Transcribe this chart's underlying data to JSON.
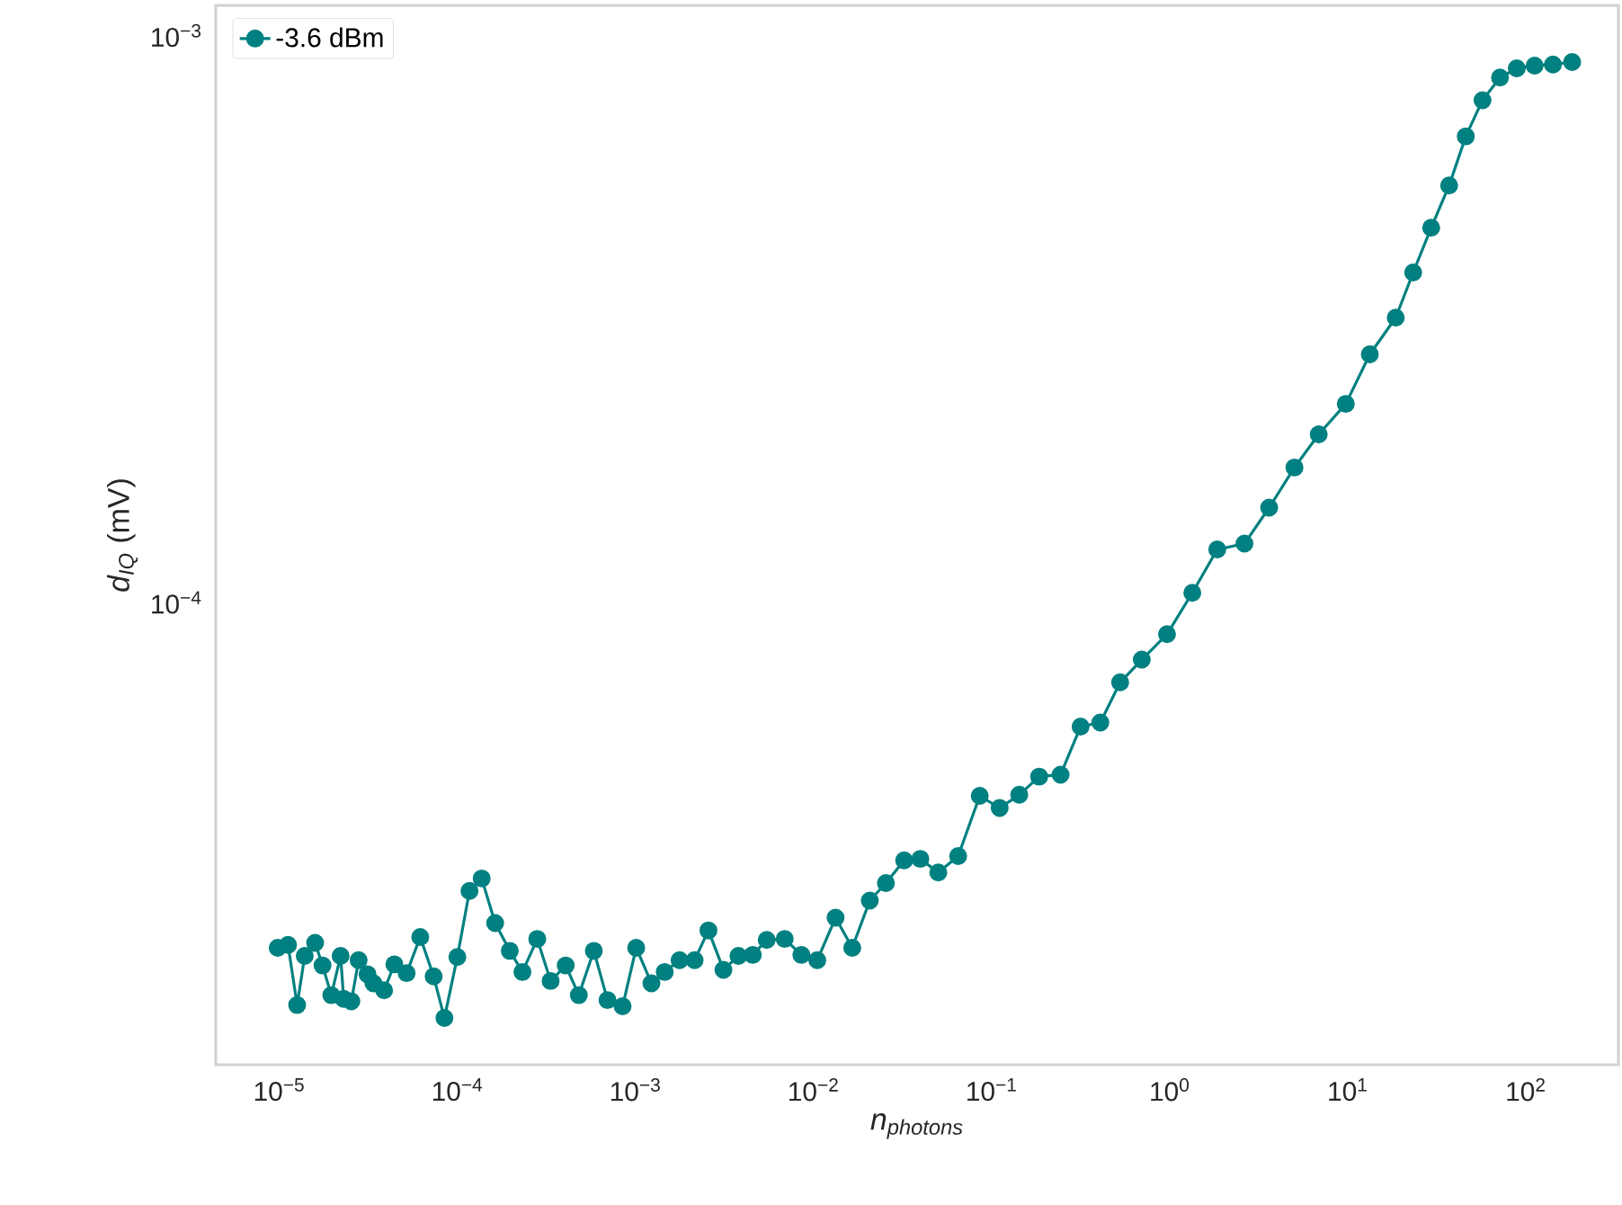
{
  "chart_data": {
    "type": "line",
    "xlabel": "*n$_{photons}$*",
    "ylabel": "*d$_{IQ}$* (mV)",
    "log": "xy",
    "grid": false,
    "legend": "top left",
    "marker": "circle",
    "line_style": "solid",
    "xlim": [
      4.4e-06,
      331
    ],
    "ylim": [
      1.53e-05,
      0.00113
    ],
    "xticks": [
      {
        "value": 1e-05,
        "label": "10$^{−5}$"
      },
      {
        "value": 0.0001,
        "label": "10$^{−4}$"
      },
      {
        "value": 0.001,
        "label": "10$^{−3}$"
      },
      {
        "value": 0.01,
        "label": "10$^{−2}$"
      },
      {
        "value": 0.1,
        "label": "10$^{−1}$"
      },
      {
        "value": 1,
        "label": "10$^{0}$"
      },
      {
        "value": 10,
        "label": "10$^{1}$"
      },
      {
        "value": 100,
        "label": "10$^{2}$"
      }
    ],
    "yticks": [
      {
        "value": 0.0001,
        "label": "10$^{−4}$"
      },
      {
        "value": 0.001,
        "label": "10$^{−3}$"
      }
    ],
    "series": [
      {
        "name": "-3.6 dBm",
        "color": "#008080",
        "x": [
          9.8e-06,
          1.12e-05,
          1.26e-05,
          1.39e-05,
          1.59e-05,
          1.75e-05,
          1.96e-05,
          2.21e-05,
          2.3e-05,
          2.54e-05,
          2.79e-05,
          3.13e-05,
          3.38e-05,
          3.88e-05,
          4.43e-05,
          5.19e-05,
          6.19e-05,
          7.36e-05,
          8.46e-05,
          0.0001,
          0.000117,
          0.000137,
          0.000163,
          0.000197,
          0.000232,
          0.000281,
          0.000334,
          0.000406,
          0.000481,
          0.000584,
          0.000697,
          0.000847,
          0.00101,
          0.00123,
          0.00146,
          0.00177,
          0.00215,
          0.00257,
          0.00312,
          0.00379,
          0.00456,
          0.00546,
          0.00689,
          0.00855,
          0.0105,
          0.0133,
          0.0165,
          0.0207,
          0.0255,
          0.0323,
          0.0398,
          0.0502,
          0.0649,
          0.0858,
          0.111,
          0.143,
          0.185,
          0.244,
          0.316,
          0.408,
          0.527,
          0.697,
          0.966,
          1.34,
          1.85,
          2.63,
          3.62,
          5.02,
          6.87,
          9.75,
          13.3,
          18.6,
          23.3,
          29.4,
          37.1,
          46.0,
          57.1,
          71.6,
          88.9,
          112,
          142,
          182
        ],
        "values": [
          2.46e-05,
          2.49e-05,
          1.95e-05,
          2.38e-05,
          2.51e-05,
          2.29e-05,
          2.03e-05,
          2.38e-05,
          2e-05,
          1.98e-05,
          2.34e-05,
          2.21e-05,
          2.13e-05,
          2.07e-05,
          2.3e-05,
          2.22e-05,
          2.57e-05,
          2.19e-05,
          1.85e-05,
          2.37e-05,
          3.1e-05,
          3.26e-05,
          2.72e-05,
          2.43e-05,
          2.23e-05,
          2.55e-05,
          2.15e-05,
          2.29e-05,
          2.03e-05,
          2.43e-05,
          1.99e-05,
          1.94e-05,
          2.46e-05,
          2.13e-05,
          2.23e-05,
          2.34e-05,
          2.34e-05,
          2.64e-05,
          2.25e-05,
          2.38e-05,
          2.39e-05,
          2.54e-05,
          2.55e-05,
          2.39e-05,
          2.34e-05,
          2.78e-05,
          2.46e-05,
          2.98e-05,
          3.2e-05,
          3.51e-05,
          3.53e-05,
          3.34e-05,
          3.57e-05,
          4.56e-05,
          4.34e-05,
          4.58e-05,
          4.93e-05,
          4.97e-05,
          6.04e-05,
          6.14e-05,
          7.23e-05,
          7.93e-05,
          8.79e-05,
          0.000104,
          0.000124,
          0.000127,
          0.000147,
          0.000173,
          0.000198,
          0.000224,
          0.000274,
          0.000318,
          0.000382,
          0.000458,
          0.000544,
          0.000664,
          0.000769,
          0.000843,
          0.000875,
          0.000885,
          0.000889,
          0.000898
        ]
      }
    ]
  }
}
